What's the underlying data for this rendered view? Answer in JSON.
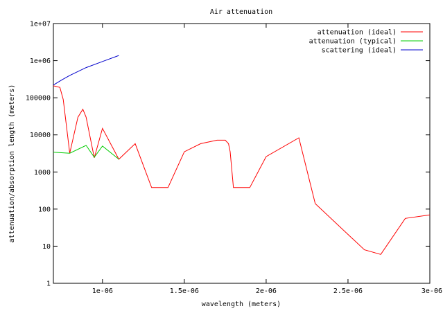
{
  "chart_data": {
    "type": "line",
    "title": "Air attenuation",
    "xlabel": "wavelength (meters)",
    "ylabel": "attenuation/absorption length (meters)",
    "xlim": [
      7e-07,
      3e-06
    ],
    "ylim": [
      1,
      10000000
    ],
    "y_scale": "log",
    "grid": false,
    "legend_position": "top-right",
    "x_ticks": [
      {
        "value": 1e-06,
        "label": "1e-06"
      },
      {
        "value": 1.5e-06,
        "label": "1.5e-06"
      },
      {
        "value": 2e-06,
        "label": "2e-06"
      },
      {
        "value": 2.5e-06,
        "label": "2.5e-06"
      },
      {
        "value": 3e-06,
        "label": "3e-06"
      }
    ],
    "y_ticks": [
      {
        "value": 1,
        "label": "1"
      },
      {
        "value": 10,
        "label": "10"
      },
      {
        "value": 100,
        "label": "100"
      },
      {
        "value": 1000,
        "label": "1000"
      },
      {
        "value": 10000,
        "label": "10000"
      },
      {
        "value": 100000,
        "label": "100000"
      },
      {
        "value": 1000000,
        "label": "1e+06"
      },
      {
        "value": 10000000,
        "label": "1e+07"
      }
    ],
    "series": [
      {
        "name": "attenuation (ideal)",
        "color": "#ff0000",
        "x": [
          7e-07,
          7.4e-07,
          7.6e-07,
          8e-07,
          8.5e-07,
          8.8e-07,
          9e-07,
          9.5e-07,
          1e-06,
          1.1e-06,
          1.2e-06,
          1.3e-06,
          1.4e-06,
          1.5e-06,
          1.6e-06,
          1.7e-06,
          1.75e-06,
          1.77e-06,
          1.78e-06,
          1.8e-06,
          1.9e-06,
          2e-06,
          2.2e-06,
          2.3e-06,
          2.6e-06,
          2.7e-06,
          2.85e-06,
          3e-06
        ],
        "y": [
          210000,
          190000,
          90000,
          3200,
          30000,
          49000,
          30000,
          2400,
          15000,
          2200,
          5800,
          380,
          380,
          3500,
          5800,
          7200,
          7200,
          5800,
          3500,
          380,
          380,
          2600,
          8300,
          140,
          8,
          6,
          56,
          70
        ]
      },
      {
        "name": "attenuation (typical)",
        "color": "#00cc00",
        "x": [
          7e-07,
          8e-07,
          9e-07,
          9.5e-07,
          1e-06,
          1.1e-06
        ],
        "y": [
          3400,
          3200,
          5200,
          2500,
          5000,
          2200
        ]
      },
      {
        "name": "scattering (ideal)",
        "color": "#0000cc",
        "x": [
          7e-07,
          7.5e-07,
          8e-07,
          9e-07,
          1e-06,
          1.1e-06
        ],
        "y": [
          220000,
          300000,
          400000,
          650000,
          950000,
          1380000
        ]
      }
    ]
  }
}
